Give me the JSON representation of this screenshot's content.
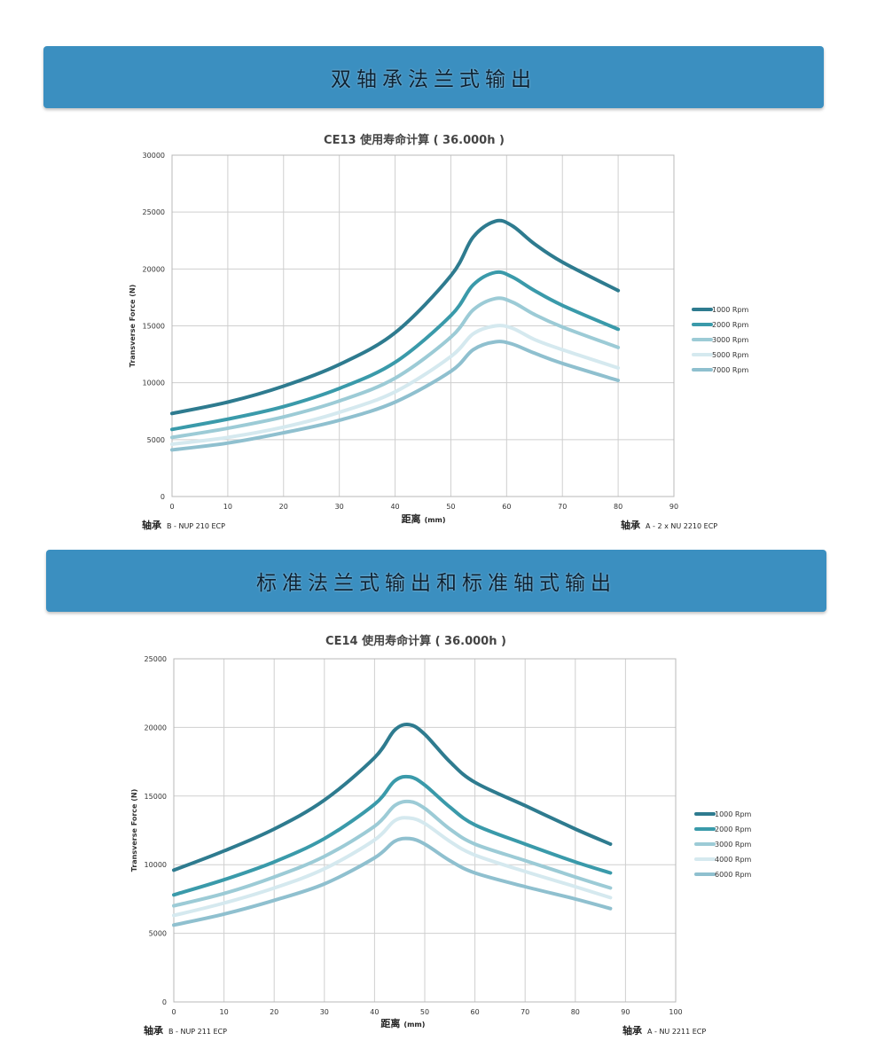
{
  "banners": [
    {
      "title": "双轴承法兰式输出"
    },
    {
      "title": "标准法兰式输出和标准轴式输出"
    }
  ],
  "colors": {
    "banner_bg": "#3b8fc0",
    "grid": "#cfcfcf",
    "series": [
      "#2e7b8f",
      "#3a9aaa",
      "#9ccbd6",
      "#d5e9ef",
      "#8fc0cf"
    ]
  },
  "chart_data": [
    {
      "type": "line",
      "title": "CE13    使用寿命计算 ( 36.000h )",
      "xlabel": "距离",
      "xunit": "(mm)",
      "ylabel": "Transverse Force (N)",
      "xlim": [
        0,
        90
      ],
      "ylim": [
        0,
        30000
      ],
      "xticks": [
        0,
        10,
        20,
        30,
        40,
        50,
        60,
        70,
        80,
        90
      ],
      "yticks": [
        0,
        5000,
        10000,
        15000,
        20000,
        25000,
        30000
      ],
      "grid": true,
      "legend_position": "right",
      "bearing_left": {
        "label": "轴承",
        "value": "B - NUP 210 ECP"
      },
      "bearing_right": {
        "label": "轴承",
        "value": "A - 2 x NU 2210 ECP"
      },
      "series": [
        {
          "name": "1000 Rpm",
          "x": [
            0,
            10,
            20,
            30,
            40,
            50,
            54,
            58,
            61,
            65,
            70,
            80
          ],
          "y": [
            7300,
            8300,
            9700,
            11600,
            14400,
            19400,
            22800,
            24200,
            23800,
            22200,
            20600,
            18100
          ]
        },
        {
          "name": "2000 Rpm",
          "x": [
            0,
            10,
            20,
            30,
            40,
            50,
            54,
            58,
            61,
            65,
            70,
            80
          ],
          "y": [
            5900,
            6800,
            7900,
            9500,
            11800,
            15900,
            18600,
            19700,
            19300,
            18100,
            16800,
            14700
          ]
        },
        {
          "name": "3000 Rpm",
          "x": [
            0,
            10,
            20,
            30,
            40,
            50,
            54,
            58,
            61,
            65,
            70,
            80
          ],
          "y": [
            5200,
            6000,
            7000,
            8400,
            10400,
            14000,
            16400,
            17400,
            17100,
            16000,
            14900,
            13100
          ]
        },
        {
          "name": "5000 Rpm",
          "x": [
            0,
            10,
            20,
            30,
            40,
            50,
            54,
            58,
            61,
            65,
            70,
            80
          ],
          "y": [
            4600,
            5200,
            6100,
            7400,
            9200,
            12300,
            14300,
            15000,
            14800,
            13800,
            12900,
            11300
          ]
        },
        {
          "name": "7000 Rpm",
          "x": [
            0,
            10,
            20,
            30,
            40,
            50,
            54,
            58,
            61,
            65,
            70,
            80
          ],
          "y": [
            4100,
            4700,
            5600,
            6700,
            8300,
            11000,
            12900,
            13600,
            13400,
            12600,
            11700,
            10200
          ]
        }
      ]
    },
    {
      "type": "line",
      "title": "CE14    使用寿命计算 ( 36.000h )",
      "xlabel": "距离",
      "xunit": "(mm)",
      "ylabel": "Transverse Force (N)",
      "xlim": [
        0,
        100
      ],
      "ylim": [
        0,
        25000
      ],
      "xticks": [
        0,
        10,
        20,
        30,
        40,
        50,
        60,
        70,
        80,
        90,
        100
      ],
      "yticks": [
        0,
        5000,
        10000,
        15000,
        20000,
        25000
      ],
      "grid": true,
      "legend_position": "right",
      "bearing_left": {
        "label": "轴承",
        "value": "B - NUP 211 ECP"
      },
      "bearing_right": {
        "label": "轴承",
        "value": "A - NU 2211 ECP"
      },
      "series": [
        {
          "name": "1000 Rpm",
          "x": [
            0,
            10,
            20,
            30,
            40,
            44,
            47,
            50,
            55,
            60,
            70,
            80,
            87
          ],
          "y": [
            9600,
            11000,
            12600,
            14700,
            17800,
            19800,
            20200,
            19500,
            17500,
            16000,
            14300,
            12600,
            11500
          ]
        },
        {
          "name": "2000 Rpm",
          "x": [
            0,
            10,
            20,
            30,
            40,
            44,
            47,
            50,
            55,
            60,
            70,
            80,
            87
          ],
          "y": [
            7800,
            8900,
            10200,
            11900,
            14400,
            16100,
            16400,
            15800,
            14200,
            12900,
            11500,
            10200,
            9400
          ]
        },
        {
          "name": "3000 Rpm",
          "x": [
            0,
            10,
            20,
            30,
            40,
            44,
            47,
            50,
            55,
            60,
            70,
            80,
            87
          ],
          "y": [
            7000,
            7900,
            9100,
            10600,
            12800,
            14300,
            14600,
            14100,
            12600,
            11500,
            10300,
            9100,
            8300
          ]
        },
        {
          "name": "4000 Rpm",
          "x": [
            0,
            10,
            20,
            30,
            40,
            44,
            47,
            50,
            55,
            60,
            70,
            80,
            87
          ],
          "y": [
            6300,
            7200,
            8300,
            9700,
            11800,
            13200,
            13400,
            13000,
            11700,
            10700,
            9500,
            8400,
            7600
          ]
        },
        {
          "name": "6000 Rpm",
          "x": [
            0,
            10,
            20,
            30,
            40,
            44,
            47,
            50,
            55,
            60,
            70,
            80,
            87
          ],
          "y": [
            5600,
            6400,
            7400,
            8600,
            10500,
            11700,
            11900,
            11500,
            10300,
            9400,
            8400,
            7500,
            6800
          ]
        }
      ]
    }
  ]
}
